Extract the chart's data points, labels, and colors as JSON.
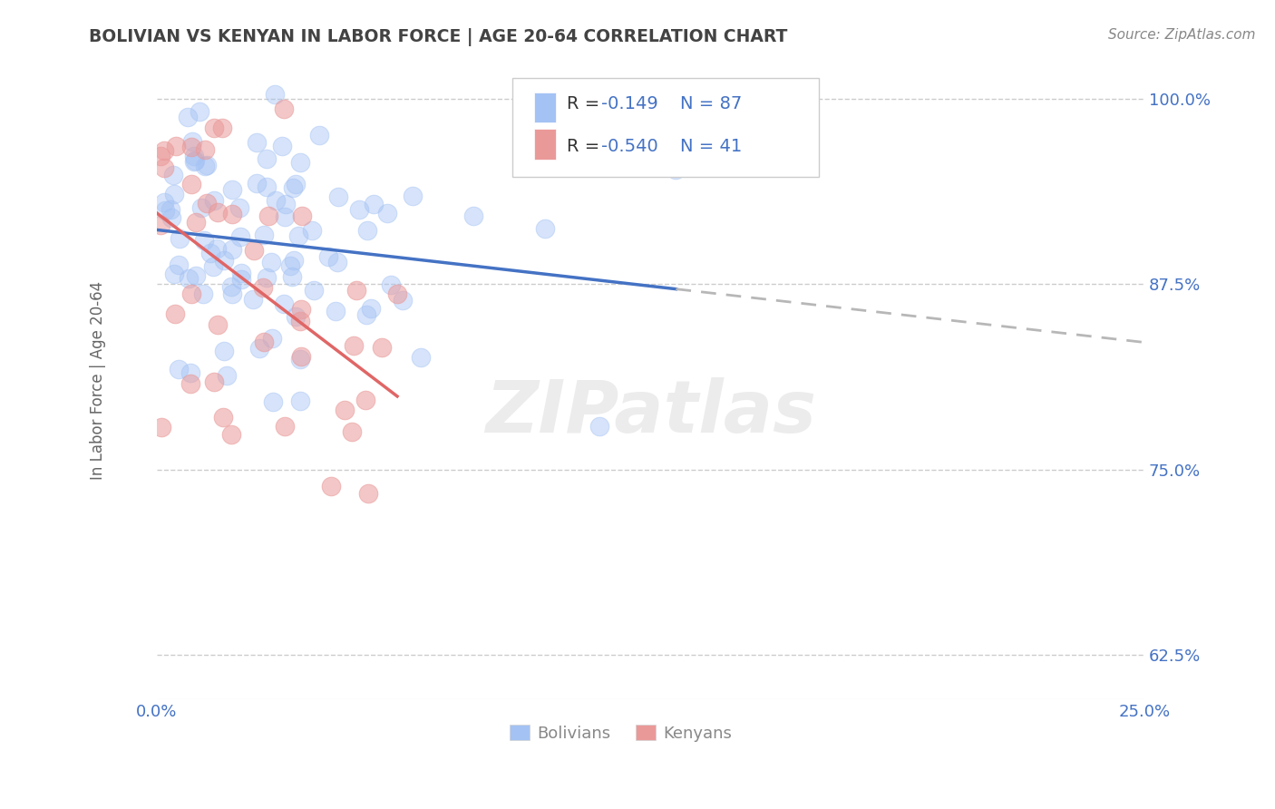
{
  "title": "BOLIVIAN VS KENYAN IN LABOR FORCE | AGE 20-64 CORRELATION CHART",
  "source_text": "Source: ZipAtlas.com",
  "ylabel": "In Labor Force | Age 20-64",
  "xlim": [
    0.0,
    0.25
  ],
  "ylim": [
    0.595,
    1.025
  ],
  "yticks": [
    0.625,
    0.75,
    0.875,
    1.0
  ],
  "ytick_labels": [
    "62.5%",
    "75.0%",
    "87.5%",
    "100.0%"
  ],
  "xticks": [
    0.0,
    0.25
  ],
  "xtick_labels": [
    "0.0%",
    "25.0%"
  ],
  "legend_r1": "R = ",
  "legend_v1": "-0.149",
  "legend_n1": "N = 87",
  "legend_r2": "R = ",
  "legend_v2": "-0.540",
  "legend_n2": "N = 41",
  "blue_color": "#a4c2f4",
  "pink_color": "#ea9999",
  "blue_line_color": "#4472c4",
  "pink_line_color": "#e06666",
  "dash_color": "#b7b7b7",
  "watermark": "ZIPatlas",
  "background_color": "#ffffff",
  "grid_color": "#cccccc",
  "title_color": "#434343",
  "axis_color": "#666666",
  "tick_color": "#4472c4",
  "legend_r_color": "#000000",
  "legend_v_color": "#4472c4",
  "blue_N": 87,
  "pink_N": 41,
  "blue_R": -0.149,
  "pink_R": -0.54
}
